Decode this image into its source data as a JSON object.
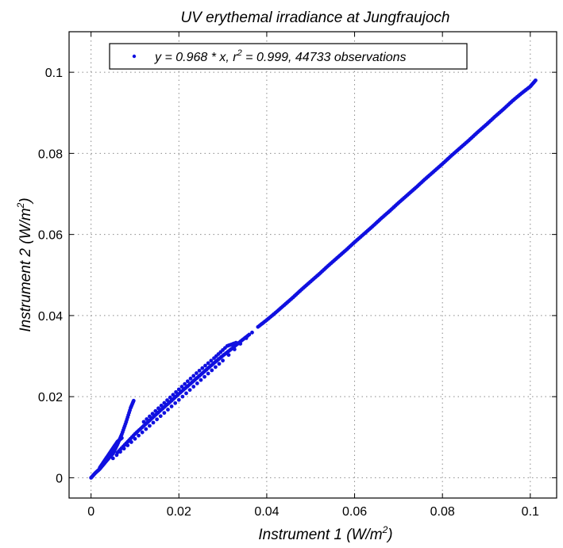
{
  "chart_data": {
    "type": "scatter",
    "title": "UV erythemal irradiance at Jungfraujoch",
    "xlabel": {
      "main": "Instrument 1 (W/m",
      "sup": "2",
      "close": ")"
    },
    "ylabel": {
      "main": "Instrument 2 (W/m",
      "sup": "2",
      "close": ")"
    },
    "xlim": [
      -0.005,
      0.106
    ],
    "ylim": [
      -0.005,
      0.11
    ],
    "xticks": [
      0,
      0.02,
      0.04,
      0.06,
      0.08,
      0.1
    ],
    "yticks": [
      0,
      0.02,
      0.04,
      0.06,
      0.08,
      0.1
    ],
    "xtick_labels": [
      "0",
      "0.02",
      "0.04",
      "0.06",
      "0.08",
      "0.1"
    ],
    "ytick_labels": [
      "0",
      "0.02",
      "0.04",
      "0.06",
      "0.08",
      "0.1"
    ],
    "grid": true,
    "legend_position": "top-left",
    "legend": {
      "prefix": "y = 0.968 * x, r",
      "sup": "2",
      "suffix": " = 0.999, 44733 observations"
    },
    "colors": {
      "points": "#1010e0"
    },
    "series": [
      {
        "name": "y = 0.968 * x, r2 = 0.999, 44733 observations",
        "fit_slope": 0.968,
        "r_squared": 0.999,
        "observations": 44733,
        "points": [
          [
            0.0,
            0.0
          ],
          [
            0.001,
            0.0012
          ],
          [
            0.002,
            0.0022
          ],
          [
            0.003,
            0.0035
          ],
          [
            0.004,
            0.0048
          ],
          [
            0.005,
            0.006
          ],
          [
            0.006,
            0.0082
          ],
          [
            0.007,
            0.0107
          ],
          [
            0.008,
            0.0138
          ],
          [
            0.009,
            0.0172
          ],
          [
            0.0097,
            0.019
          ],
          [
            0.002,
            0.0025
          ],
          [
            0.003,
            0.0041
          ],
          [
            0.004,
            0.0057
          ],
          [
            0.005,
            0.0073
          ],
          [
            0.006,
            0.0089
          ],
          [
            0.007,
            0.0098
          ],
          [
            0.006,
            0.0062
          ],
          [
            0.008,
            0.0085
          ],
          [
            0.01,
            0.0108
          ],
          [
            0.012,
            0.0128
          ],
          [
            0.014,
            0.0148
          ],
          [
            0.016,
            0.0168
          ],
          [
            0.018,
            0.0187
          ],
          [
            0.02,
            0.0207
          ],
          [
            0.022,
            0.0226
          ],
          [
            0.024,
            0.0245
          ],
          [
            0.026,
            0.0264
          ],
          [
            0.028,
            0.0283
          ],
          [
            0.03,
            0.0301
          ],
          [
            0.032,
            0.0318
          ],
          [
            0.034,
            0.0336
          ],
          [
            0.036,
            0.0353
          ],
          [
            0.012,
            0.0138
          ],
          [
            0.016,
            0.0178
          ],
          [
            0.02,
            0.0218
          ],
          [
            0.024,
            0.0258
          ],
          [
            0.028,
            0.0295
          ],
          [
            0.031,
            0.0325
          ],
          [
            0.033,
            0.0333
          ],
          [
            0.005,
            0.0048
          ],
          [
            0.01,
            0.0096
          ],
          [
            0.015,
            0.0144
          ],
          [
            0.02,
            0.0192
          ],
          [
            0.025,
            0.0241
          ],
          [
            0.03,
            0.0289
          ],
          [
            0.038,
            0.0372
          ],
          [
            0.04,
            0.0389
          ],
          [
            0.042,
            0.0407
          ],
          [
            0.044,
            0.0426
          ],
          [
            0.046,
            0.0445
          ],
          [
            0.048,
            0.0465
          ],
          [
            0.05,
            0.0484
          ],
          [
            0.052,
            0.0503
          ],
          [
            0.054,
            0.0523
          ],
          [
            0.056,
            0.0542
          ],
          [
            0.058,
            0.0561
          ],
          [
            0.06,
            0.0581
          ],
          [
            0.062,
            0.06
          ],
          [
            0.064,
            0.0619
          ],
          [
            0.066,
            0.0639
          ],
          [
            0.068,
            0.0658
          ],
          [
            0.07,
            0.0678
          ],
          [
            0.072,
            0.0697
          ],
          [
            0.074,
            0.0716
          ],
          [
            0.076,
            0.0736
          ],
          [
            0.078,
            0.0755
          ],
          [
            0.08,
            0.0774
          ],
          [
            0.082,
            0.0794
          ],
          [
            0.084,
            0.0813
          ],
          [
            0.086,
            0.0832
          ],
          [
            0.088,
            0.0852
          ],
          [
            0.09,
            0.0871
          ],
          [
            0.092,
            0.0891
          ],
          [
            0.094,
            0.091
          ],
          [
            0.096,
            0.093
          ],
          [
            0.098,
            0.0948
          ],
          [
            0.1,
            0.0965
          ],
          [
            0.1012,
            0.098
          ]
        ]
      }
    ]
  }
}
